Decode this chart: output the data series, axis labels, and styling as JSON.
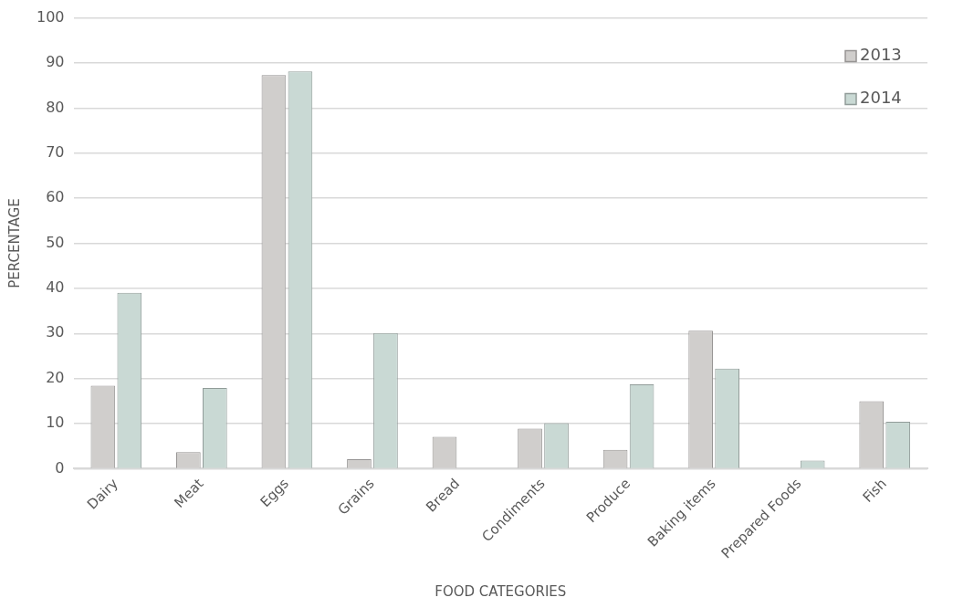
{
  "chart_data": {
    "type": "bar",
    "xlabel": "FOOD CATEGORIES",
    "ylabel": "PERCENTAGE",
    "categories": [
      "Dairy",
      "Meat",
      "Eggs",
      "Grains",
      "Bread",
      "Condiments",
      "Produce",
      "Baking items",
      "Prepared Foods",
      "Fish"
    ],
    "series": [
      {
        "name": "2013",
        "color": "#d0cecc",
        "values": [
          18.4,
          3.7,
          87.3,
          2.1,
          7.1,
          8.9,
          4.2,
          30.6,
          null,
          15.0
        ]
      },
      {
        "name": "2014",
        "color": "#c9d9d4",
        "values": [
          39.0,
          17.9,
          88.1,
          30.1,
          null,
          10.1,
          18.7,
          22.2,
          1.8,
          10.4
        ]
      }
    ],
    "ylim": [
      0,
      100
    ],
    "yticks": [
      0,
      10,
      20,
      30,
      40,
      50,
      60,
      70,
      80,
      90,
      100
    ],
    "grid": "y",
    "legend": "top right"
  }
}
